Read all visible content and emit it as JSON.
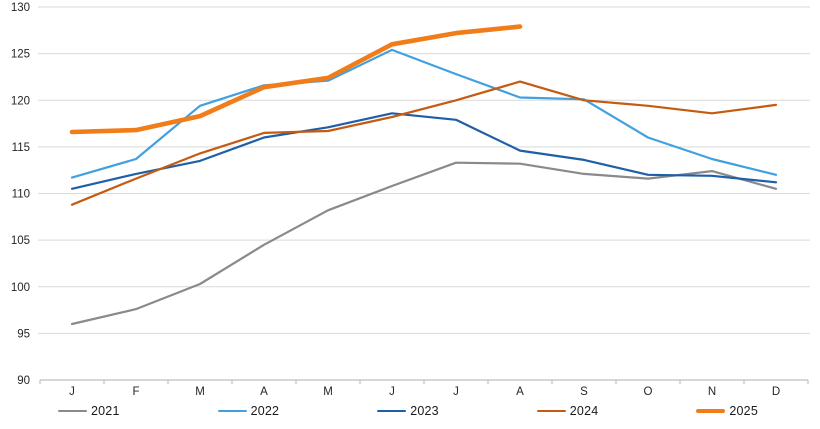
{
  "chart_data": {
    "type": "line",
    "x": [
      "J",
      "F",
      "M",
      "A",
      "M",
      "J",
      "J",
      "A",
      "S",
      "O",
      "N",
      "D"
    ],
    "y_ticks": [
      90,
      95,
      100,
      105,
      110,
      115,
      120,
      125,
      130
    ],
    "ylim": [
      90,
      130
    ],
    "grid": "horizontal-only",
    "legend_position": "bottom",
    "title": "",
    "xlabel": "",
    "ylabel": "",
    "series": [
      {
        "name": "2021",
        "color": "#8a8a8a",
        "stroke_width": 2.2,
        "values": [
          96.0,
          97.6,
          100.3,
          104.5,
          108.2,
          110.8,
          113.3,
          113.2,
          112.1,
          111.6,
          112.4,
          110.5
        ]
      },
      {
        "name": "2022",
        "color": "#41a0df",
        "stroke_width": 2.2,
        "values": [
          111.7,
          113.7,
          119.4,
          121.6,
          122.1,
          125.4,
          122.8,
          120.3,
          120.1,
          116.0,
          113.7,
          112.0
        ]
      },
      {
        "name": "2023",
        "color": "#1f5fa8",
        "stroke_width": 2.2,
        "values": [
          110.5,
          112.1,
          113.5,
          116.0,
          117.1,
          118.6,
          117.9,
          114.6,
          113.6,
          112.0,
          111.9,
          111.2
        ]
      },
      {
        "name": "2024",
        "color": "#c55a11",
        "stroke_width": 2.2,
        "values": [
          108.8,
          111.6,
          114.3,
          116.5,
          116.7,
          118.2,
          120.0,
          122.0,
          120.0,
          119.4,
          118.6,
          119.5
        ]
      },
      {
        "name": "2025",
        "color": "#f07d1a",
        "stroke_width": 4.6,
        "values": [
          116.6,
          116.8,
          118.3,
          121.4,
          122.4,
          126.0,
          127.2,
          127.9
        ]
      }
    ]
  },
  "style_colors": {
    "gridline": "#d9d9d9",
    "axis_line": "#bfbfbf",
    "tick_text": "#262626"
  }
}
